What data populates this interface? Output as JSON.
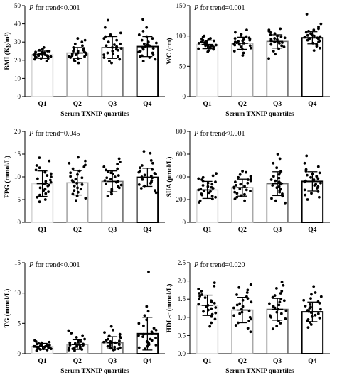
{
  "chart_data": [
    {
      "type": "bar",
      "ylabel": "BMI (Kg/m²)",
      "xlabel": "Serum TXNIP quartiles",
      "annotation_p": "P",
      "annotation_rest": " for trend<0.001",
      "categories": [
        "Q1",
        "Q2",
        "Q3",
        "Q4"
      ],
      "values": [
        23,
        24,
        27,
        27.5
      ],
      "error": [
        2,
        3,
        6,
        5.5
      ],
      "ylim": [
        0,
        50
      ],
      "yticks": [
        "0",
        "10",
        "20",
        "30",
        "40",
        "50"
      ],
      "points": [
        [
          19.5,
          20.5,
          21,
          21,
          21.5,
          22,
          22,
          22,
          22.5,
          22.5,
          23,
          23,
          23,
          23,
          23.5,
          23.5,
          24,
          24,
          24,
          24.5,
          25,
          25,
          25.5,
          26,
          27
        ],
        [
          18.5,
          19.5,
          20,
          21,
          21.5,
          22,
          22,
          22.5,
          23,
          23,
          23.5,
          24,
          24,
          24.5,
          25,
          25,
          25.5,
          26,
          26.5,
          27,
          28,
          29,
          30,
          31,
          32
        ],
        [
          18.5,
          19.5,
          20.5,
          21.5,
          22,
          23,
          23.5,
          24,
          25,
          25.5,
          26,
          26.5,
          27,
          27.5,
          28,
          28.5,
          29,
          30,
          31,
          32,
          33,
          34,
          35,
          38,
          42
        ],
        [
          19.5,
          20.5,
          21.5,
          22,
          22.5,
          23,
          24,
          24.5,
          25,
          26,
          26.5,
          27,
          27.5,
          28,
          28.5,
          29,
          29.5,
          30,
          31,
          32,
          33,
          34,
          36,
          38,
          42.5
        ]
      ]
    },
    {
      "type": "bar",
      "ylabel": "WC (cm)",
      "xlabel": "Serum TXNIP quartiles",
      "annotation_p": "P",
      "annotation_rest": " for trend=0.001",
      "categories": [
        "Q1",
        "Q2",
        "Q3",
        "Q4"
      ],
      "values": [
        86,
        88,
        91,
        97
      ],
      "error": [
        7,
        10,
        11,
        10
      ],
      "ylim": [
        0,
        150
      ],
      "yticks": [
        "0",
        "50",
        "100",
        "150"
      ],
      "points": [
        [
          74,
          76,
          78,
          79,
          80,
          81,
          82,
          83,
          84,
          84,
          85,
          86,
          86,
          87,
          88,
          89,
          90,
          91,
          92,
          93,
          94,
          95,
          96,
          98,
          100
        ],
        [
          68,
          72,
          75,
          78,
          80,
          82,
          84,
          85,
          86,
          87,
          88,
          89,
          90,
          91,
          92,
          93,
          94,
          95,
          96,
          97,
          99,
          101,
          103,
          106,
          110
        ],
        [
          63,
          70,
          75,
          79,
          82,
          84,
          86,
          88,
          89,
          90,
          91,
          92,
          93,
          94,
          95,
          96,
          97,
          99,
          100,
          102,
          104,
          106,
          108,
          110,
          112
        ],
        [
          76,
          80,
          83,
          86,
          88,
          90,
          92,
          93,
          94,
          95,
          96,
          97,
          98,
          99,
          100,
          101,
          102,
          104,
          106,
          108,
          110,
          112,
          115,
          120,
          136
        ]
      ]
    },
    {
      "type": "bar",
      "ylabel": "FPG (mmol/L)",
      "xlabel": "",
      "annotation_p": "P",
      "annotation_rest": " for trend=0.045",
      "categories": [
        "Q1",
        "Q2",
        "Q3",
        "Q4"
      ],
      "values": [
        8.5,
        8.7,
        9.0,
        9.9
      ],
      "error": [
        2.8,
        2.7,
        2.3,
        2.0
      ],
      "ylim": [
        0,
        20
      ],
      "yticks": [
        "0",
        "5",
        "10",
        "15",
        "20"
      ],
      "points": [
        [
          4.5,
          5,
          5.5,
          6,
          6.3,
          6.7,
          7,
          7.3,
          7.6,
          8,
          8.2,
          8.5,
          8.8,
          9,
          9.3,
          9.6,
          10,
          10.3,
          10.7,
          11,
          11.5,
          12,
          12.5,
          13.5,
          14.2
        ],
        [
          4.8,
          5.3,
          5.8,
          6.2,
          6.6,
          7,
          7.3,
          7.6,
          8,
          8.3,
          8.6,
          8.9,
          9.2,
          9.5,
          9.8,
          10.1,
          10.5,
          10.9,
          11.3,
          11.8,
          12.2,
          12.6,
          13,
          13.5,
          14.3
        ],
        [
          5.8,
          6.2,
          6.6,
          7,
          7.3,
          7.6,
          7.9,
          8.2,
          8.5,
          8.8,
          9,
          9.2,
          9.5,
          9.8,
          10,
          10.3,
          10.6,
          10.9,
          11.2,
          11.5,
          11.8,
          12.2,
          12.8,
          13.3,
          14
        ],
        [
          6.5,
          7,
          7.5,
          8,
          8.3,
          8.6,
          8.9,
          9.2,
          9.4,
          9.6,
          9.8,
          10,
          10.2,
          10.4,
          10.6,
          10.8,
          11,
          11.3,
          11.6,
          12,
          12.5,
          13,
          13.6,
          15.2,
          15.6
        ]
      ]
    },
    {
      "type": "bar",
      "ylabel": "SUA (μmol/L)",
      "xlabel": "",
      "annotation_p": "P",
      "annotation_rest": " for trend<0.001",
      "categories": [
        "Q1",
        "Q2",
        "Q3",
        "Q4"
      ],
      "values": [
        285,
        305,
        340,
        360
      ],
      "error": [
        75,
        75,
        105,
        85
      ],
      "ylim": [
        0,
        800
      ],
      "yticks": [
        "0",
        "200",
        "400",
        "600",
        "800"
      ],
      "points": [
        [
          175,
          190,
          205,
          220,
          230,
          240,
          250,
          260,
          270,
          278,
          285,
          292,
          300,
          308,
          315,
          325,
          335,
          345,
          355,
          365,
          375,
          385,
          395,
          410,
          430
        ],
        [
          190,
          205,
          220,
          235,
          245,
          255,
          265,
          275,
          285,
          295,
          302,
          310,
          318,
          326,
          335,
          345,
          355,
          365,
          375,
          385,
          395,
          405,
          420,
          440,
          450
        ],
        [
          170,
          190,
          210,
          230,
          250,
          265,
          280,
          295,
          305,
          315,
          325,
          335,
          345,
          355,
          365,
          375,
          390,
          405,
          420,
          435,
          450,
          480,
          520,
          560,
          600
        ],
        [
          200,
          220,
          240,
          255,
          270,
          285,
          300,
          315,
          325,
          335,
          345,
          355,
          365,
          375,
          385,
          395,
          405,
          415,
          425,
          435,
          450,
          465,
          490,
          520,
          585
        ]
      ]
    },
    {
      "type": "bar",
      "ylabel": "TG (mmol/L)",
      "xlabel": "Serum TXNIP quartiles",
      "annotation_p": "P",
      "annotation_rest": " for trend<0.001",
      "categories": [
        "Q1",
        "Q2",
        "Q3",
        "Q4"
      ],
      "values": [
        1.2,
        1.5,
        1.8,
        3.3
      ],
      "error": [
        0.5,
        0.8,
        1.0,
        2.7
      ],
      "ylim": [
        0,
        15
      ],
      "yticks": [
        "0",
        "5",
        "10",
        "15"
      ],
      "points": [
        [
          0.5,
          0.6,
          0.7,
          0.8,
          0.8,
          0.9,
          0.9,
          1.0,
          1.0,
          1.1,
          1.1,
          1.2,
          1.2,
          1.2,
          1.3,
          1.3,
          1.4,
          1.4,
          1.5,
          1.6,
          1.7,
          1.8,
          1.9,
          2.0,
          2.2
        ],
        [
          0.5,
          0.6,
          0.7,
          0.8,
          0.9,
          1.0,
          1.0,
          1.1,
          1.2,
          1.2,
          1.3,
          1.4,
          1.4,
          1.5,
          1.6,
          1.7,
          1.8,
          1.9,
          2.0,
          2.2,
          2.4,
          2.7,
          3.0,
          3.4,
          3.8
        ],
        [
          0.6,
          0.7,
          0.8,
          0.9,
          1.0,
          1.1,
          1.2,
          1.3,
          1.4,
          1.5,
          1.6,
          1.7,
          1.8,
          1.9,
          2.0,
          2.1,
          2.2,
          2.4,
          2.6,
          2.8,
          3.0,
          3.2,
          3.5,
          3.9,
          4.5
        ],
        [
          0.8,
          1.0,
          1.2,
          1.4,
          1.5,
          1.7,
          1.9,
          2.0,
          2.2,
          2.4,
          2.6,
          2.8,
          3.0,
          3.2,
          3.4,
          3.6,
          3.9,
          4.2,
          4.6,
          5.0,
          5.6,
          6.3,
          7.0,
          7.8,
          13.5
        ]
      ]
    },
    {
      "type": "bar",
      "ylabel": "HDL-c (mmol/L)",
      "xlabel": "Serum TXNIP quartiles",
      "annotation_p": "P",
      "annotation_rest": " for trend=0.020",
      "categories": [
        "Q1",
        "Q2",
        "Q3",
        "Q4"
      ],
      "values": [
        1.33,
        1.2,
        1.22,
        1.15
      ],
      "error": [
        0.28,
        0.35,
        0.3,
        0.27
      ],
      "ylim": [
        0,
        2.5
      ],
      "yticks": [
        "0.0",
        "0.5",
        "1.0",
        "1.5",
        "2.0",
        "2.5"
      ],
      "points": [
        [
          0.75,
          0.85,
          0.95,
          1.02,
          1.08,
          1.12,
          1.16,
          1.2,
          1.24,
          1.27,
          1.3,
          1.33,
          1.36,
          1.39,
          1.42,
          1.46,
          1.5,
          1.54,
          1.58,
          1.62,
          1.66,
          1.72,
          1.78,
          1.86,
          1.95
        ],
        [
          0.6,
          0.7,
          0.78,
          0.85,
          0.9,
          0.95,
          1.0,
          1.05,
          1.1,
          1.14,
          1.18,
          1.22,
          1.26,
          1.3,
          1.34,
          1.38,
          1.42,
          1.47,
          1.52,
          1.57,
          1.62,
          1.68,
          1.75,
          1.82,
          1.9
        ],
        [
          0.68,
          0.76,
          0.84,
          0.9,
          0.96,
          1.0,
          1.05,
          1.1,
          1.14,
          1.18,
          1.22,
          1.26,
          1.3,
          1.34,
          1.38,
          1.42,
          1.46,
          1.5,
          1.55,
          1.6,
          1.66,
          1.72,
          1.8,
          1.88,
          1.97
        ],
        [
          0.72,
          0.8,
          0.86,
          0.9,
          0.94,
          0.98,
          1.02,
          1.06,
          1.1,
          1.13,
          1.16,
          1.19,
          1.22,
          1.25,
          1.28,
          1.31,
          1.35,
          1.39,
          1.43,
          1.47,
          1.52,
          1.57,
          1.63,
          1.68,
          1.85
        ]
      ]
    }
  ]
}
